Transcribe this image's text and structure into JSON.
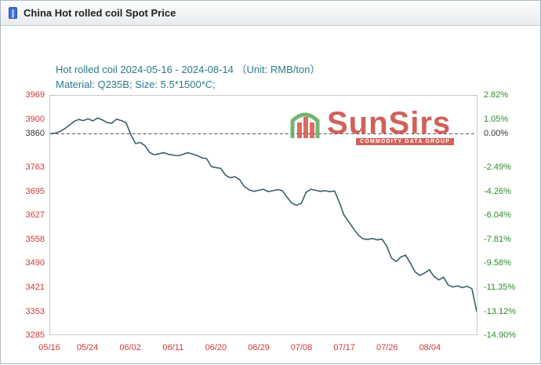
{
  "header": {
    "title": "China Hot rolled coil Spot Price"
  },
  "watermark": {
    "brand": "SunSirs",
    "tagline": "COMMODITY DATA GROUP"
  },
  "colors": {
    "title": "#2a7b8c",
    "left_axis": "#cc3a3a",
    "right_axis": "#2e8b2e",
    "baseline_label": "#333333",
    "x_axis": "#cc3a3a",
    "line": "#3a5f68",
    "baseline_dash": "#555555",
    "brand_red": "#c9463d",
    "logo_green": "#5aa85a"
  },
  "chart_data": {
    "type": "line",
    "title": "Hot rolled coil 2024-05-16 - 2024-08-14 （Unit: RMB/ton）",
    "subtitle": "Material: Q235B; Size: 5.5*1500*C;",
    "baseline_value": 3860,
    "ylim": [
      3285,
      3969
    ],
    "x_max_day": 90,
    "grid": false,
    "ticks": [
      {
        "value": 3969,
        "label": "3969",
        "pct_label": "2.82%"
      },
      {
        "value": 3900,
        "label": "3900",
        "pct_label": "1.05%"
      },
      {
        "value": 3860,
        "label": "3860",
        "pct_label": "0.00%"
      },
      {
        "value": 3763,
        "label": "3763",
        "pct_label": "-2.49%"
      },
      {
        "value": 3695,
        "label": "3695",
        "pct_label": "-4.26%"
      },
      {
        "value": 3627,
        "label": "3627",
        "pct_label": "-6.04%"
      },
      {
        "value": 3558,
        "label": "3558",
        "pct_label": "-7.81%"
      },
      {
        "value": 3490,
        "label": "3490",
        "pct_label": "-9.58%"
      },
      {
        "value": 3421,
        "label": "3421",
        "pct_label": "-11.35%"
      },
      {
        "value": 3353,
        "label": "3353",
        "pct_label": "-13.12%"
      },
      {
        "value": 3285,
        "label": "3285",
        "pct_label": "-14.90%"
      }
    ],
    "x_ticks": [
      {
        "day": 0,
        "label": "05/16"
      },
      {
        "day": 8,
        "label": "05/24"
      },
      {
        "day": 17,
        "label": "06/02"
      },
      {
        "day": 26,
        "label": "06/11"
      },
      {
        "day": 35,
        "label": "06/20"
      },
      {
        "day": 44,
        "label": "06/29"
      },
      {
        "day": 53,
        "label": "07/08"
      },
      {
        "day": 62,
        "label": "07/17"
      },
      {
        "day": 71,
        "label": "07/26"
      },
      {
        "day": 80,
        "label": "08/04"
      }
    ],
    "series": [
      {
        "name": "Hot rolled coil spot price (RMB/ton)",
        "points": [
          [
            0,
            3860
          ],
          [
            1,
            3862
          ],
          [
            2,
            3866
          ],
          [
            3,
            3874
          ],
          [
            4,
            3884
          ],
          [
            5,
            3895
          ],
          [
            6,
            3901
          ],
          [
            7,
            3898
          ],
          [
            8,
            3903
          ],
          [
            9,
            3897
          ],
          [
            10,
            3905
          ],
          [
            11,
            3900
          ],
          [
            12,
            3892
          ],
          [
            13,
            3890
          ],
          [
            14,
            3902
          ],
          [
            15,
            3898
          ],
          [
            16,
            3892
          ],
          [
            17,
            3858
          ],
          [
            18,
            3832
          ],
          [
            19,
            3835
          ],
          [
            20,
            3826
          ],
          [
            21,
            3806
          ],
          [
            22,
            3800
          ],
          [
            23,
            3803
          ],
          [
            24,
            3806
          ],
          [
            25,
            3801
          ],
          [
            26,
            3799
          ],
          [
            27,
            3797
          ],
          [
            28,
            3801
          ],
          [
            29,
            3806
          ],
          [
            30,
            3802
          ],
          [
            31,
            3798
          ],
          [
            32,
            3791
          ],
          [
            33,
            3789
          ],
          [
            34,
            3766
          ],
          [
            35,
            3763
          ],
          [
            36,
            3761
          ],
          [
            37,
            3741
          ],
          [
            38,
            3734
          ],
          [
            39,
            3737
          ],
          [
            40,
            3728
          ],
          [
            41,
            3709
          ],
          [
            42,
            3699
          ],
          [
            43,
            3695
          ],
          [
            44,
            3698
          ],
          [
            45,
            3701
          ],
          [
            46,
            3694
          ],
          [
            47,
            3697
          ],
          [
            48,
            3700
          ],
          [
            49,
            3697
          ],
          [
            50,
            3678
          ],
          [
            51,
            3661
          ],
          [
            52,
            3655
          ],
          [
            53,
            3661
          ],
          [
            54,
            3692
          ],
          [
            55,
            3701
          ],
          [
            56,
            3698
          ],
          [
            57,
            3695
          ],
          [
            58,
            3697
          ],
          [
            59,
            3694
          ],
          [
            60,
            3696
          ],
          [
            61,
            3664
          ],
          [
            62,
            3627
          ],
          [
            63,
            3608
          ],
          [
            64,
            3588
          ],
          [
            65,
            3570
          ],
          [
            66,
            3559
          ],
          [
            67,
            3557
          ],
          [
            68,
            3560
          ],
          [
            69,
            3556
          ],
          [
            70,
            3558
          ],
          [
            71,
            3539
          ],
          [
            72,
            3504
          ],
          [
            73,
            3494
          ],
          [
            74,
            3507
          ],
          [
            75,
            3512
          ],
          [
            76,
            3489
          ],
          [
            77,
            3464
          ],
          [
            78,
            3454
          ],
          [
            79,
            3461
          ],
          [
            80,
            3470
          ],
          [
            81,
            3451
          ],
          [
            82,
            3441
          ],
          [
            83,
            3449
          ],
          [
            84,
            3426
          ],
          [
            85,
            3421
          ],
          [
            86,
            3424
          ],
          [
            87,
            3419
          ],
          [
            88,
            3423
          ],
          [
            89,
            3416
          ],
          [
            90,
            3350
          ]
        ]
      }
    ]
  }
}
